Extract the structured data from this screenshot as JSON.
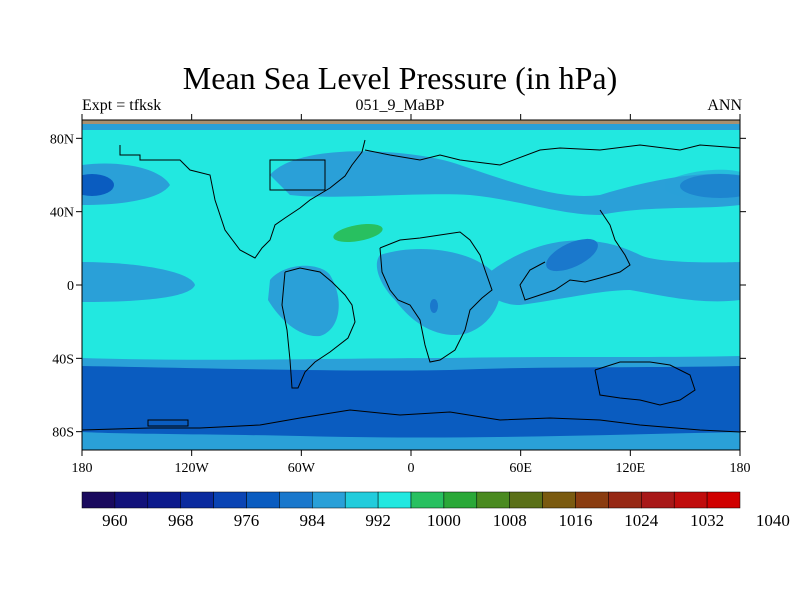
{
  "title": "Mean Sea Level Pressure (in hPa)",
  "subtitle_left": "Expt = tfksk",
  "subtitle_center": "051_9_MaBP",
  "subtitle_right": "ANN",
  "map": {
    "lon_range": [
      -180,
      180
    ],
    "lat_range": [
      -90,
      90
    ],
    "x_ticks": [
      {
        "value": -180,
        "label": "180"
      },
      {
        "value": -120,
        "label": "120W"
      },
      {
        "value": -60,
        "label": "60W"
      },
      {
        "value": 0,
        "label": "0"
      },
      {
        "value": 60,
        "label": "60E"
      },
      {
        "value": 120,
        "label": "120E"
      },
      {
        "value": 180,
        "label": "180"
      }
    ],
    "y_ticks": [
      {
        "value": 80,
        "label": "80N"
      },
      {
        "value": 40,
        "label": "40N"
      },
      {
        "value": 0,
        "label": "0"
      },
      {
        "value": -40,
        "label": "40S"
      },
      {
        "value": -80,
        "label": "80S"
      }
    ]
  },
  "colorbar": {
    "colors": [
      "#1a0a5e",
      "#12127a",
      "#0c1a8c",
      "#0a2a9e",
      "#0a44b4",
      "#0a5cc0",
      "#1a78cc",
      "#2aa0d8",
      "#22ccdc",
      "#22e8e0",
      "#28c060",
      "#2aa838",
      "#4a8a20",
      "#5a7018",
      "#7a5a10",
      "#8a3c10",
      "#962814",
      "#a81818",
      "#c00c0c",
      "#d00000"
    ],
    "labels": [
      "960",
      "968",
      "976",
      "984",
      "992",
      "1000",
      "1008",
      "1016",
      "1024",
      "1032",
      "1040"
    ]
  },
  "fill_colors": {
    "cyan": "#22e8e0",
    "teal": "#2aa0d8",
    "mid": "#1a78cc",
    "dark": "#0a5cc0",
    "green": "#28c060",
    "gray_band": "#a89070"
  }
}
